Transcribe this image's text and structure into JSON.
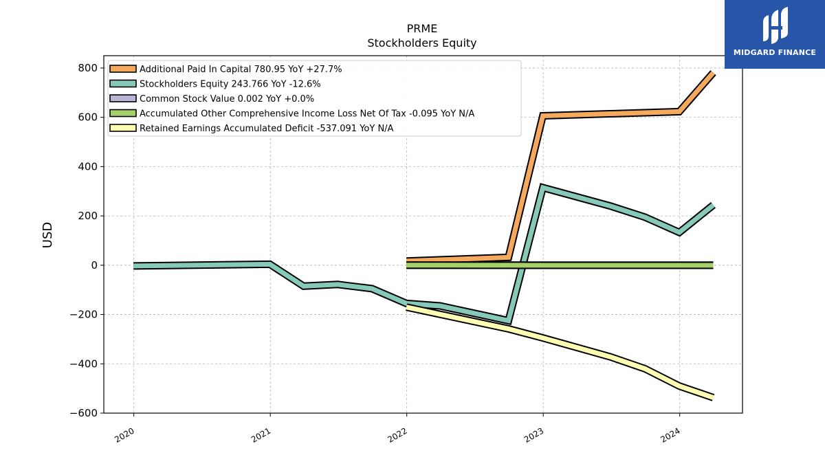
{
  "brand": {
    "name": "MIDGARD FINANCE",
    "icon": "midgard-logo-icon"
  },
  "chart_data": {
    "type": "line",
    "title": "PRME",
    "subtitle": "Stockholders  Equity",
    "ylabel": "USD",
    "xlabel": "",
    "ylim": [
      -600,
      850
    ],
    "xlim": [
      2019.78,
      2024.46
    ],
    "yticks": [
      -600,
      -400,
      -200,
      0,
      200,
      400,
      600,
      800
    ],
    "ytick_labels": [
      "−600",
      "−400",
      "−200",
      "0",
      "200",
      "400",
      "600",
      "800"
    ],
    "xticks": [
      2020,
      2021,
      2022,
      2023,
      2024
    ],
    "xtick_labels": [
      "2020",
      "2021",
      "2022",
      "2023",
      "2024"
    ],
    "grid": true,
    "legend_position": "top-left",
    "series": [
      {
        "name": "Additional Paid In Capital  780.95 YoY +27.7%",
        "color": "#f5a95e",
        "x": [
          "2021-12-31",
          "2022-09-30",
          "2022-12-31",
          "2023-12-31",
          "2024-03-31"
        ],
        "values": [
          17,
          32,
          606,
          623,
          781
        ]
      },
      {
        "name": "Stockholders Equity  243.766 YoY -12.6%",
        "color": "#86c9b9",
        "x": [
          "2019-12-31",
          "2020-12-31",
          "2021-03-31",
          "2021-06-30",
          "2021-09-30",
          "2021-12-31",
          "2022-03-31",
          "2022-09-30",
          "2022-12-31",
          "2023-06-30",
          "2023-09-30",
          "2023-12-31",
          "2024-03-31"
        ],
        "values": [
          -3,
          4,
          -85,
          -78,
          -95,
          -155,
          -165,
          -225,
          315,
          240,
          195,
          133,
          244
        ]
      },
      {
        "name": "Common Stock Value  0.002 YoY +0.0%",
        "color": "#b9b5d6",
        "x": [
          "2021-12-31",
          "2024-03-31"
        ],
        "values": [
          0.002,
          0.002
        ]
      },
      {
        "name": "Accumulated Other Comprehensive Income Loss Net Of Tax  -0.095 YoY N/A",
        "color": "#a6d06a",
        "x": [
          "2021-12-31",
          "2024-03-31"
        ],
        "values": [
          0,
          -0.095
        ]
      },
      {
        "name": "Retained Earnings Accumulated Deficit  -537.091 YoY N/A",
        "color": "#ffffb3",
        "x": [
          "2021-12-31",
          "2022-09-30",
          "2022-12-31",
          "2023-06-30",
          "2023-09-30",
          "2023-12-31",
          "2024-03-31"
        ],
        "values": [
          -170,
          -258,
          -295,
          -372,
          -420,
          -490,
          -537
        ]
      }
    ]
  }
}
